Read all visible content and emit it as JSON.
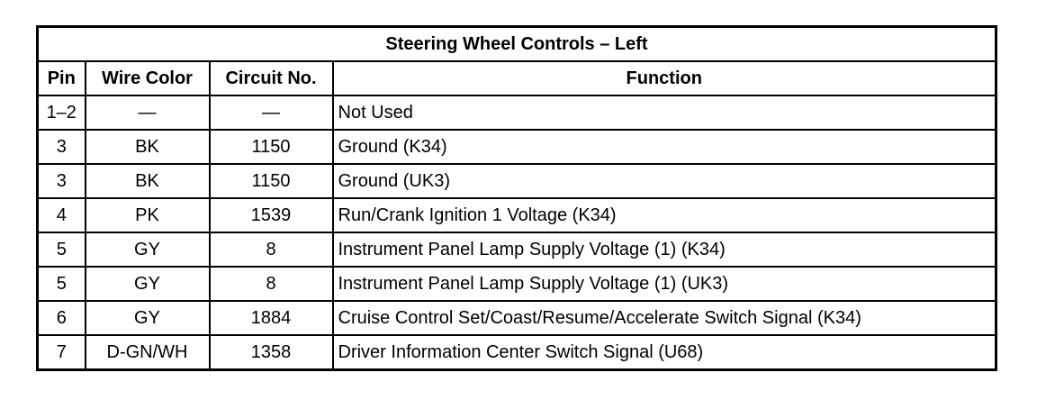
{
  "title": "Steering Wheel Controls – Left",
  "headers": [
    "Pin",
    "Wire Color",
    "Circuit No.",
    "Function"
  ],
  "rows": [
    [
      "1–2",
      "—",
      "—",
      "Not Used"
    ],
    [
      "3",
      "BK",
      "1150",
      "Ground (K34)"
    ],
    [
      "3",
      "BK",
      "1150",
      "Ground (UK3)"
    ],
    [
      "4",
      "PK",
      "1539",
      "Run/Crank Ignition 1 Voltage (K34)"
    ],
    [
      "5",
      "GY",
      "8",
      "Instrument Panel Lamp Supply Voltage (1) (K34)"
    ],
    [
      "5",
      "GY",
      "8",
      "Instrument Panel Lamp Supply Voltage (1) (UK3)"
    ],
    [
      "6",
      "GY",
      "1884",
      "Cruise Control Set/Coast/Resume/Accelerate Switch Signal (K34)"
    ],
    [
      "7",
      "D-GN/WH",
      "1358",
      "Driver Information Center Switch Signal (U68)"
    ]
  ]
}
